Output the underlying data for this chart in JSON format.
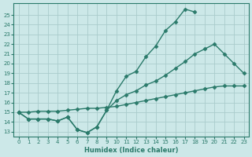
{
  "xlabel": "Humidex (Indice chaleur)",
  "bg_color": "#cce8e8",
  "grid_color": "#aacccc",
  "line_color": "#2a7a6a",
  "marker": "D",
  "markersize": 2.5,
  "linewidth": 1.0,
  "xlim": [
    -0.5,
    23.5
  ],
  "ylim": [
    12.5,
    26.2
  ],
  "xticks": [
    0,
    1,
    2,
    3,
    4,
    5,
    6,
    7,
    8,
    9,
    10,
    11,
    12,
    13,
    14,
    15,
    16,
    17,
    18,
    19,
    20,
    21,
    22,
    23
  ],
  "yticks": [
    13,
    14,
    15,
    16,
    17,
    18,
    19,
    20,
    21,
    22,
    23,
    24,
    25
  ],
  "line1_x": [
    0,
    1,
    2,
    3,
    4,
    5,
    6,
    7,
    8,
    9,
    10,
    11,
    12,
    13,
    14,
    15,
    16,
    17,
    18
  ],
  "line1_y": [
    15,
    14.3,
    14.3,
    14.3,
    14.1,
    14.5,
    13.2,
    12.9,
    13.5,
    15.2,
    17.2,
    18.7,
    19.2,
    20.7,
    21.8,
    23.4,
    24.3,
    25.6,
    25.3
  ],
  "line2_x": [
    0,
    1,
    2,
    3,
    4,
    5,
    6,
    7,
    8,
    9,
    10,
    11,
    12,
    13,
    14,
    15,
    16,
    17,
    18,
    19,
    20,
    21,
    22,
    23
  ],
  "line2_y": [
    15,
    14.3,
    14.3,
    14.3,
    14.1,
    14.5,
    13.2,
    12.9,
    13.5,
    15.2,
    16.2,
    16.8,
    17.2,
    17.8,
    18.2,
    18.8,
    19.5,
    20.2,
    21.0,
    21.5,
    22.0,
    21.0,
    20.0,
    19.0
  ],
  "line3_x": [
    0,
    1,
    2,
    3,
    4,
    5,
    6,
    7,
    8,
    9,
    10,
    11,
    12,
    13,
    14,
    15,
    16,
    17,
    18,
    19,
    20,
    21,
    22,
    23
  ],
  "line3_y": [
    15,
    15.0,
    15.1,
    15.1,
    15.1,
    15.2,
    15.3,
    15.4,
    15.4,
    15.5,
    15.6,
    15.8,
    16.0,
    16.2,
    16.4,
    16.6,
    16.8,
    17.0,
    17.2,
    17.4,
    17.6,
    17.7,
    17.7,
    17.7
  ]
}
